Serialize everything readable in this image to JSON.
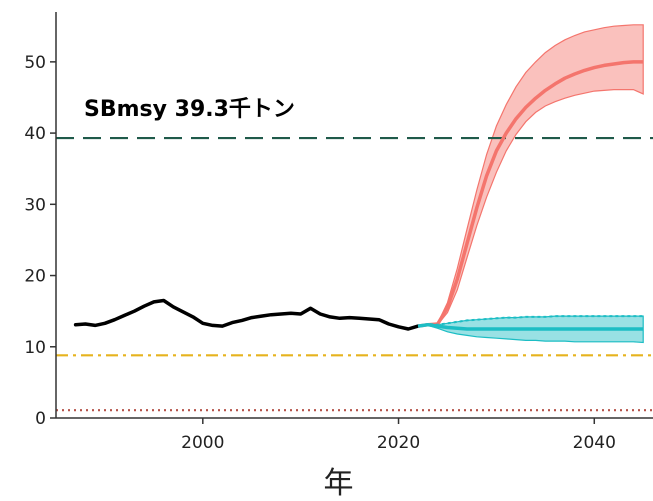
{
  "chart_data": {
    "type": "line",
    "xlabel": "年",
    "ylabel": "",
    "xlim": [
      1985,
      2046
    ],
    "ylim": [
      0,
      57
    ],
    "xticks": [
      2000,
      2020,
      2040
    ],
    "yticks": [
      0,
      10,
      20,
      30,
      40,
      50
    ],
    "grid": false,
    "legend": "none",
    "colors": {
      "history": "#000000",
      "scenario_high": "#f4756d",
      "scenario_low": "#1cbdc4",
      "sbmsy": "#1f5a4a",
      "limit": "#e6b31e",
      "ban": "#b5534a"
    },
    "reference_lines": [
      {
        "y": 39.3,
        "label": "SBmsy 39.3千トン",
        "style": "dashed",
        "color": "#1f5a4a"
      },
      {
        "y": 8.8,
        "label": "",
        "style": "dashdot",
        "color": "#e6b31e"
      },
      {
        "y": 1.1,
        "label": "",
        "style": "dotted",
        "color": "#b5534a"
      }
    ],
    "series": [
      {
        "role": "history",
        "x": [
          1987,
          1988,
          1989,
          1990,
          1991,
          1992,
          1993,
          1994,
          1995,
          1996,
          1997,
          1998,
          1999,
          2000,
          2001,
          2002,
          2003,
          2004,
          2005,
          2006,
          2007,
          2008,
          2009,
          2010,
          2011,
          2012,
          2013,
          2014,
          2015,
          2016,
          2017,
          2018,
          2019,
          2020,
          2021,
          2022
        ],
        "y": [
          13.1,
          13.2,
          13.0,
          13.3,
          13.8,
          14.4,
          15.0,
          15.7,
          16.3,
          16.5,
          15.6,
          14.9,
          14.2,
          13.3,
          13.0,
          12.9,
          13.4,
          13.7,
          14.1,
          14.3,
          14.5,
          14.6,
          14.7,
          14.6,
          15.4,
          14.6,
          14.2,
          14.0,
          14.1,
          14.0,
          13.9,
          13.8,
          13.2,
          12.8,
          12.5,
          12.9
        ]
      },
      {
        "role": "scenario_high",
        "x": [
          2022,
          2023,
          2024,
          2025,
          2026,
          2027,
          2028,
          2029,
          2030,
          2031,
          2032,
          2033,
          2034,
          2035,
          2036,
          2037,
          2038,
          2039,
          2040,
          2041,
          2042,
          2043,
          2044,
          2045
        ],
        "median": [
          12.9,
          13.1,
          13.2,
          15.5,
          19.5,
          24.5,
          29.5,
          34.0,
          37.5,
          40.0,
          42.0,
          43.6,
          44.9,
          46.0,
          46.9,
          47.7,
          48.3,
          48.8,
          49.2,
          49.5,
          49.7,
          49.9,
          50.0,
          50.0
        ],
        "lower": [
          12.9,
          13.0,
          13.1,
          14.8,
          18.0,
          22.5,
          27.0,
          31.0,
          34.5,
          37.5,
          39.8,
          41.6,
          42.9,
          43.8,
          44.4,
          44.9,
          45.3,
          45.6,
          45.9,
          46.0,
          46.1,
          46.1,
          46.1,
          45.5
        ],
        "upper": [
          12.9,
          13.2,
          13.3,
          16.2,
          21.0,
          26.5,
          32.0,
          37.0,
          41.0,
          44.0,
          46.5,
          48.5,
          50.0,
          51.3,
          52.3,
          53.1,
          53.7,
          54.2,
          54.5,
          54.8,
          55.0,
          55.1,
          55.2,
          55.2
        ]
      },
      {
        "role": "scenario_low",
        "x": [
          2022,
          2023,
          2024,
          2025,
          2026,
          2027,
          2028,
          2029,
          2030,
          2031,
          2032,
          2033,
          2034,
          2035,
          2036,
          2037,
          2038,
          2039,
          2040,
          2041,
          2042,
          2043,
          2044,
          2045
        ],
        "median": [
          12.9,
          13.1,
          12.9,
          12.7,
          12.6,
          12.5,
          12.5,
          12.5,
          12.5,
          12.5,
          12.5,
          12.5,
          12.5,
          12.5,
          12.5,
          12.5,
          12.5,
          12.5,
          12.5,
          12.5,
          12.5,
          12.5,
          12.5,
          12.5
        ],
        "lower": [
          12.9,
          13.0,
          12.6,
          12.1,
          11.8,
          11.6,
          11.4,
          11.3,
          11.2,
          11.1,
          11.0,
          10.9,
          10.9,
          10.8,
          10.8,
          10.8,
          10.7,
          10.7,
          10.7,
          10.7,
          10.7,
          10.7,
          10.7,
          10.6
        ],
        "upper": [
          12.9,
          13.2,
          13.1,
          13.3,
          13.5,
          13.7,
          13.8,
          13.9,
          14.0,
          14.1,
          14.1,
          14.2,
          14.2,
          14.2,
          14.3,
          14.3,
          14.3,
          14.3,
          14.3,
          14.3,
          14.3,
          14.3,
          14.3,
          14.3
        ]
      }
    ]
  }
}
